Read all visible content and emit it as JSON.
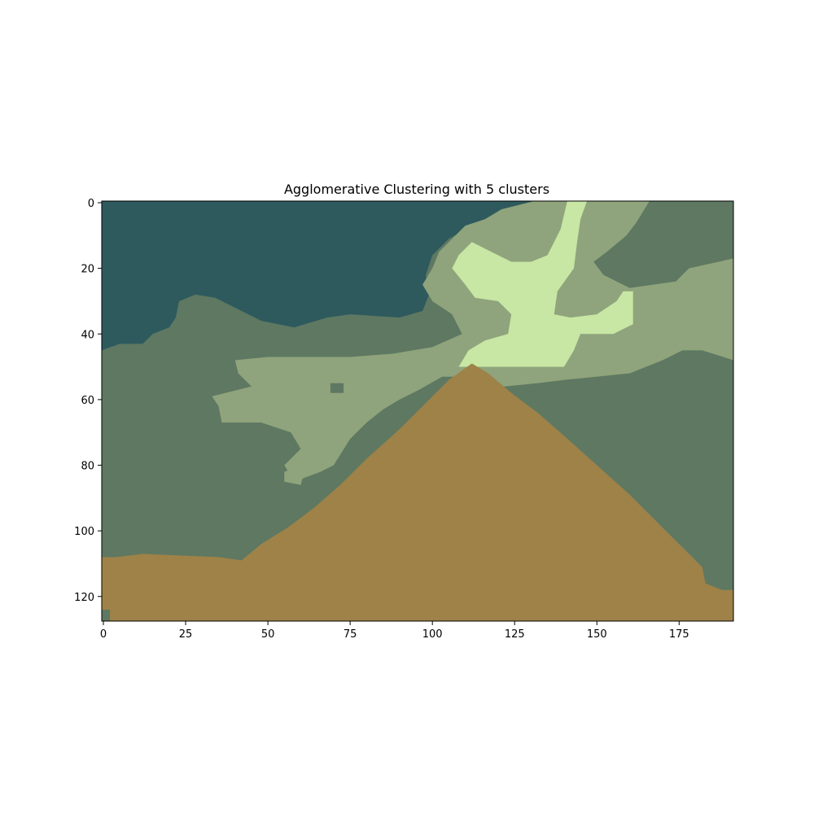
{
  "chart_data": {
    "type": "heatmap",
    "title": "Agglomerative Clustering with 5 clusters",
    "xlabel": "",
    "ylabel": "",
    "xlim": [
      -0.5,
      191.5
    ],
    "ylim": [
      127.5,
      -0.5
    ],
    "xticks": [
      0,
      25,
      50,
      75,
      100,
      125,
      150,
      175
    ],
    "yticks": [
      0,
      20,
      40,
      60,
      80,
      100,
      120
    ],
    "grid": false,
    "clusters": [
      {
        "id": 0,
        "color": "#2e5a5e"
      },
      {
        "id": 1,
        "color": "#5e7862"
      },
      {
        "id": 2,
        "color": "#8fa47c"
      },
      {
        "id": 3,
        "color": "#c8e6a4"
      },
      {
        "id": 4,
        "color": "#9e8248"
      }
    ],
    "regions": [
      {
        "cluster": 1,
        "points": [
          [
            -0.5,
            -0.5
          ],
          [
            191.5,
            -0.5
          ],
          [
            191.5,
            127.5
          ],
          [
            -0.5,
            127.5
          ]
        ]
      },
      {
        "cluster": 0,
        "points": [
          [
            -0.5,
            -0.5
          ],
          [
            131,
            -0.5
          ],
          [
            122,
            5
          ],
          [
            112,
            7
          ],
          [
            105,
            11
          ],
          [
            100,
            16
          ],
          [
            98,
            22
          ],
          [
            99,
            28
          ],
          [
            97,
            33
          ],
          [
            90,
            35
          ],
          [
            75,
            34
          ],
          [
            68,
            35
          ],
          [
            58,
            38
          ],
          [
            48,
            36
          ],
          [
            40,
            32
          ],
          [
            34,
            29
          ],
          [
            28,
            28
          ],
          [
            23,
            30
          ],
          [
            22,
            35
          ],
          [
            20,
            38
          ],
          [
            15,
            40
          ],
          [
            12,
            43
          ],
          [
            5,
            43
          ],
          [
            -0.5,
            45
          ]
        ]
      },
      {
        "cluster": 2,
        "points": [
          [
            131,
            -0.5
          ],
          [
            166,
            -0.5
          ],
          [
            162,
            6
          ],
          [
            159,
            10
          ],
          [
            153,
            15
          ],
          [
            149,
            18
          ],
          [
            152,
            22
          ],
          [
            160,
            26
          ],
          [
            174,
            24
          ],
          [
            178,
            20
          ],
          [
            191.5,
            17
          ],
          [
            191.5,
            48
          ],
          [
            182,
            45
          ],
          [
            176,
            45
          ],
          [
            170,
            48
          ],
          [
            160,
            52
          ],
          [
            150,
            53
          ],
          [
            140,
            54
          ],
          [
            132,
            55
          ],
          [
            122,
            56
          ],
          [
            114,
            56
          ],
          [
            108,
            53
          ],
          [
            103,
            53
          ],
          [
            96,
            57
          ],
          [
            90,
            60
          ],
          [
            85,
            63
          ],
          [
            80,
            67
          ],
          [
            75,
            72
          ],
          [
            70,
            80
          ],
          [
            66,
            82
          ],
          [
            58,
            85
          ],
          [
            55,
            80
          ],
          [
            60,
            75
          ],
          [
            57,
            70
          ],
          [
            48,
            67
          ],
          [
            36,
            67
          ],
          [
            35,
            62
          ],
          [
            33,
            59
          ],
          [
            45,
            56
          ],
          [
            41,
            52
          ],
          [
            40,
            48
          ],
          [
            50,
            47
          ],
          [
            60,
            47
          ],
          [
            75,
            47
          ],
          [
            88,
            46
          ],
          [
            100,
            44
          ],
          [
            109,
            40
          ],
          [
            106,
            34
          ],
          [
            100,
            30
          ],
          [
            97,
            25
          ],
          [
            100,
            20
          ],
          [
            102,
            15
          ],
          [
            106,
            11
          ],
          [
            110,
            7
          ],
          [
            116,
            5
          ],
          [
            121,
            2
          ]
        ]
      },
      {
        "cluster": 3,
        "points": [
          [
            141,
            -0.5
          ],
          [
            147,
            -0.5
          ],
          [
            145,
            5
          ],
          [
            144,
            12
          ],
          [
            143,
            20
          ],
          [
            138,
            27
          ],
          [
            137,
            34
          ],
          [
            142,
            35
          ],
          [
            150,
            34
          ],
          [
            156,
            30
          ],
          [
            158,
            27
          ],
          [
            161,
            27
          ],
          [
            161,
            37
          ],
          [
            155,
            40
          ],
          [
            145,
            40
          ],
          [
            143,
            45
          ],
          [
            140,
            50
          ],
          [
            130,
            50
          ],
          [
            118,
            50
          ],
          [
            108,
            50
          ],
          [
            111,
            45
          ],
          [
            116,
            42
          ],
          [
            123,
            40
          ],
          [
            124,
            34
          ],
          [
            120,
            30
          ],
          [
            113,
            29
          ],
          [
            110,
            25
          ],
          [
            106,
            20
          ],
          [
            108,
            16
          ],
          [
            112,
            12
          ],
          [
            118,
            15
          ],
          [
            124,
            18
          ],
          [
            130,
            18
          ],
          [
            135,
            16
          ],
          [
            139,
            8
          ]
        ]
      },
      {
        "cluster": 1,
        "points": [
          [
            167,
            76
          ],
          [
            172,
            72
          ],
          [
            177,
            73
          ],
          [
            174,
            79
          ],
          [
            172,
            83
          ],
          [
            170,
            80
          ]
        ]
      },
      {
        "cluster": 2,
        "points": [
          [
            50,
            56
          ],
          [
            52,
            54
          ],
          [
            58,
            54
          ],
          [
            59,
            59
          ],
          [
            53,
            60
          ],
          [
            50,
            59
          ]
        ]
      },
      {
        "cluster": 2,
        "points": [
          [
            55,
            82
          ],
          [
            58,
            81
          ],
          [
            61,
            82
          ],
          [
            60,
            86
          ],
          [
            55,
            85
          ]
        ]
      },
      {
        "cluster": 1,
        "points": [
          [
            69,
            55
          ],
          [
            73,
            55
          ],
          [
            73,
            58
          ],
          [
            69,
            58
          ]
        ]
      },
      {
        "cluster": 4,
        "points": [
          [
            -0.5,
            108
          ],
          [
            4,
            108
          ],
          [
            12,
            107
          ],
          [
            35,
            108
          ],
          [
            42,
            109
          ],
          [
            48,
            104
          ],
          [
            56,
            99
          ],
          [
            64,
            93
          ],
          [
            72,
            86
          ],
          [
            80,
            78
          ],
          [
            90,
            69
          ],
          [
            100,
            59
          ],
          [
            105,
            54
          ],
          [
            112,
            49
          ],
          [
            117,
            52
          ],
          [
            124,
            58
          ],
          [
            132,
            64
          ],
          [
            140,
            71
          ],
          [
            150,
            80
          ],
          [
            160,
            89
          ],
          [
            172,
            101
          ],
          [
            182,
            111
          ],
          [
            183,
            116
          ],
          [
            188,
            118
          ],
          [
            191.5,
            118
          ],
          [
            191.5,
            127.5
          ],
          [
            -0.5,
            127.5
          ]
        ]
      },
      {
        "cluster": 1,
        "points": [
          [
            -0.5,
            124
          ],
          [
            2,
            124
          ],
          [
            2,
            127.5
          ],
          [
            -0.5,
            127.5
          ]
        ]
      }
    ]
  }
}
